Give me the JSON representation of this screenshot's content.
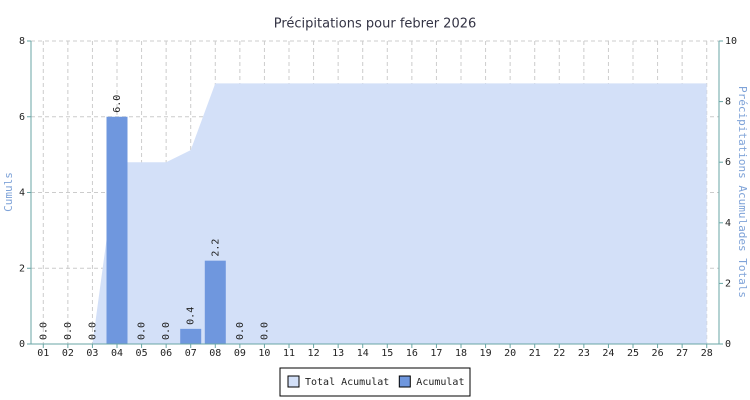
{
  "chart_data": {
    "type": "bar",
    "title": "Précipitations pour febrer 2026",
    "y_label": "Cumuls",
    "y2_label": "Précipitations Acumulades Totals",
    "categories": [
      "01",
      "02",
      "03",
      "04",
      "05",
      "06",
      "07",
      "08",
      "09",
      "10",
      "11",
      "12",
      "13",
      "14",
      "15",
      "16",
      "17",
      "18",
      "19",
      "20",
      "21",
      "22",
      "23",
      "24",
      "25",
      "26",
      "27",
      "28"
    ],
    "series": [
      {
        "name": "Total Acumulat",
        "type": "area",
        "axis": "y2",
        "color": "#d3e0f8",
        "values": [
          0,
          0,
          0,
          6.0,
          6.0,
          6.0,
          6.4,
          8.6,
          8.6,
          8.6,
          8.6,
          8.6,
          8.6,
          8.6,
          8.6,
          8.6,
          8.6,
          8.6,
          8.6,
          8.6,
          8.6,
          8.6,
          8.6,
          8.6,
          8.6,
          8.6,
          8.6,
          8.6
        ]
      },
      {
        "name": "Acumulat",
        "type": "bar",
        "color": "#6f97de",
        "values": [
          0,
          0,
          0,
          6.0,
          0,
          0,
          0.4,
          2.2,
          0,
          0,
          null,
          null,
          null,
          null,
          null,
          null,
          null,
          null,
          null,
          null,
          null,
          null,
          null,
          null,
          null,
          null,
          null,
          null
        ],
        "value_labels": [
          "0.0",
          "0.0",
          "0.0",
          "6.0",
          "0.0",
          "0.0",
          "0.4",
          "2.2",
          "0.0",
          "0.0",
          null,
          null,
          null,
          null,
          null,
          null,
          null,
          null,
          null,
          null,
          null,
          null,
          null,
          null,
          null,
          null,
          null,
          null
        ]
      }
    ],
    "ylim": [
      0,
      8
    ],
    "yticks": [
      0,
      2,
      4,
      6,
      8
    ],
    "y2lim": [
      0,
      10
    ],
    "y2ticks": [
      0,
      2,
      4,
      6,
      8,
      10
    ],
    "grid": true,
    "legend": "bottom"
  }
}
